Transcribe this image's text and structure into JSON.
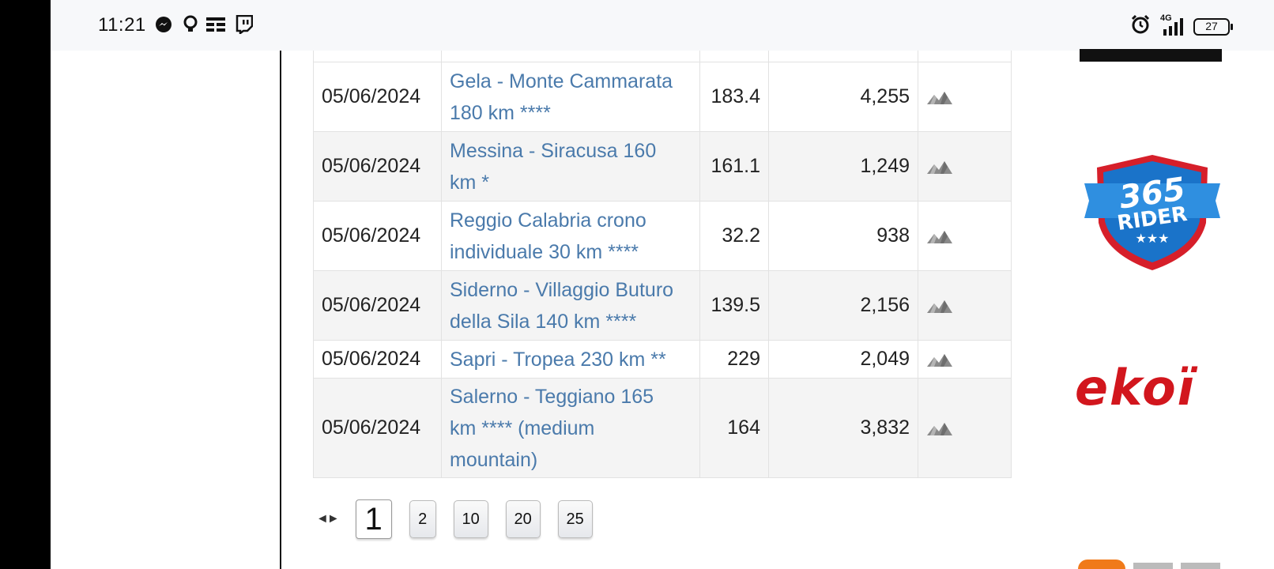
{
  "status_bar": {
    "time": "11:21",
    "battery": "27",
    "network": "4G"
  },
  "stages": [
    {
      "date": "05/06/2024",
      "name_lines": [
        "Gela - Monte Cammarata",
        "180 km ****"
      ],
      "km": "183.4",
      "vertical": "4,255",
      "row_style": "white"
    },
    {
      "date": "05/06/2024",
      "name_lines": [
        "Messina - Siracusa 160",
        "km *"
      ],
      "km": "161.1",
      "vertical": "1,249",
      "row_style": "alt"
    },
    {
      "date": "05/06/2024",
      "name_lines": [
        "Reggio Calabria crono",
        "individuale 30 km ****"
      ],
      "km": "32.2",
      "vertical": "938",
      "row_style": "white"
    },
    {
      "date": "05/06/2024",
      "name_lines": [
        "Siderno - Villaggio Buturo",
        "della Sila 140 km ****"
      ],
      "km": "139.5",
      "vertical": "2,156",
      "row_style": "alt"
    },
    {
      "date": "05/06/2024",
      "name_lines": [
        "Sapri - Tropea 230 km **"
      ],
      "km": "229",
      "vertical": "2,049",
      "row_style": "white"
    },
    {
      "date": "05/06/2024",
      "name_lines": [
        "Salerno - Teggiano 165",
        "km **** (medium",
        "mountain)"
      ],
      "km": "164",
      "vertical": "3,832",
      "row_style": "alt"
    }
  ],
  "pagination": {
    "arrows": "◄►",
    "current": "1",
    "pages": [
      "2",
      "10",
      "20",
      "25"
    ]
  },
  "ads": {
    "rider365": {
      "line1": "365",
      "line2": "RIDER",
      "stars": "★★★"
    },
    "ekoi": {
      "text": "ekoï"
    }
  },
  "colors": {
    "link": "#4a7aab",
    "row_alt": "#f4f4f4",
    "ekoi_red": "#d2161d",
    "rider_blue": "#1a73c9"
  }
}
